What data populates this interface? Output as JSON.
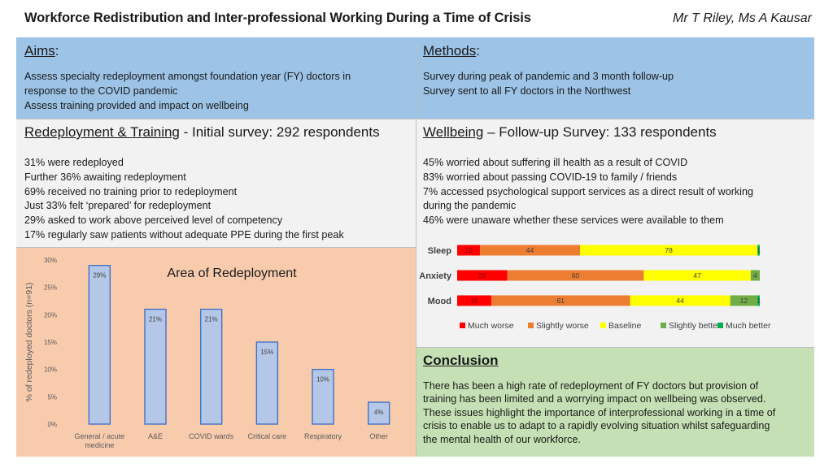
{
  "header": {
    "title": "Workforce Redistribution and Inter-professional Working During a Time of Crisis",
    "authors": "Mr T Riley, Ms A Kausar"
  },
  "aims": {
    "heading": "Aims",
    "heading_suffix": ":",
    "lines": [
      "Assess specialty redeployment amongst foundation year (FY) doctors in",
      "response to the COVID pandemic",
      "Assess training provided and impact on wellbeing"
    ]
  },
  "methods": {
    "heading": "Methods",
    "heading_suffix": ":",
    "lines": [
      "Survey during peak of pandemic and 3 month follow-up",
      "Survey sent to all FY doctors in the Northwest"
    ]
  },
  "redeployment": {
    "heading": "Redeployment & Training",
    "heading_suffix": " - Initial survey: 292 respondents",
    "lines": [
      "31% were redeployed",
      "Further 36% awaiting redeployment",
      "69% received no training prior to redeployment",
      "Just 33% felt ‘prepared’ for redeployment",
      "29% asked to work above perceived level of competency",
      "17% regularly saw patients without adequate PPE during the first peak"
    ]
  },
  "wellbeing": {
    "heading": "Wellbeing",
    "heading_suffix": " – Follow-up Survey: 133 respondents",
    "lines": [
      "45% worried about suffering ill health as a result of COVID",
      "83% worried about passing COVID-19 to family / friends",
      "7% accessed psychological support services as a direct result of working",
      "during the pandemic",
      "46% were unaware whether these services were available to them"
    ]
  },
  "conclusion": {
    "heading": "Conclusion",
    "lines": [
      "There has been a high rate of redeployment of FY doctors but provision of",
      "training has been limited and a worrying impact on wellbeing was observed.",
      "These issues highlight the importance of interprofessional working in a time of",
      "crisis to enable us to adapt to a rapidly evolving situation whilst safeguarding",
      "the mental health of our workforce."
    ]
  },
  "colors": {
    "bar_fill": "#b4c7e7",
    "bar_stroke": "#4472c4",
    "much_worse": "#ff0000",
    "slightly_worse": "#ed7d31",
    "baseline": "#ffff00",
    "slightly_better": "#70ad47",
    "much_better": "#00b050"
  },
  "chart_data": [
    {
      "type": "bar",
      "title": "Area of Redeployment",
      "ylabel": "% of redeployed doctors (n=91)",
      "xlabel": "",
      "categories": [
        "General / acute medicine",
        "A&E",
        "COVID wards",
        "Critical care",
        "Respiratory",
        "Other"
      ],
      "category_lines": [
        [
          "General / acute",
          "medicine"
        ],
        [
          "A&E"
        ],
        [
          "COVID wards"
        ],
        [
          "Critical care"
        ],
        [
          "Respiratory"
        ],
        [
          "Other"
        ]
      ],
      "values": [
        29,
        21,
        21,
        15,
        10,
        4
      ],
      "value_labels": [
        "29%",
        "21%",
        "21%",
        "15%",
        "10%",
        "4%"
      ],
      "ylim": [
        0,
        30
      ],
      "yticks": [
        0,
        5,
        10,
        15,
        20,
        25,
        30
      ],
      "ytick_labels": [
        "0%",
        "5%",
        "10%",
        "15%",
        "20%",
        "25%",
        "30%"
      ],
      "grid": false
    },
    {
      "type": "bar",
      "orientation": "horizontal",
      "stacked": true,
      "categories": [
        "Sleep",
        "Anxiety",
        "Mood"
      ],
      "series": [
        {
          "name": "Much worse",
          "values": [
            10,
            22,
            15
          ],
          "labels": [
            "10",
            "22",
            "15"
          ]
        },
        {
          "name": "Slightly worse",
          "values": [
            44,
            60,
            61
          ],
          "labels": [
            "44",
            "60",
            "61"
          ]
        },
        {
          "name": "Baseline",
          "values": [
            78,
            47,
            44
          ],
          "labels": [
            "78",
            "47",
            "44"
          ]
        },
        {
          "name": "Slightly better",
          "values": [
            0,
            4,
            12
          ],
          "labels": [
            "",
            "4",
            "12"
          ]
        },
        {
          "name": "Much better",
          "values": [
            1,
            0,
            1
          ],
          "labels": [
            "1",
            "",
            "1"
          ]
        }
      ],
      "legend": "bottom",
      "grid": false
    }
  ]
}
